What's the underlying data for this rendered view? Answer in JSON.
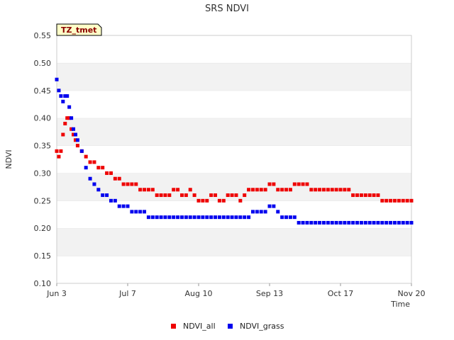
{
  "chart_data": {
    "type": "scatter",
    "title": "SRS NDVI",
    "xlabel": "Time",
    "ylabel": "NDVI",
    "ylim": [
      0.1,
      0.55
    ],
    "xlim_days": [
      0,
      170
    ],
    "yticks": [
      "0.10",
      "0.15",
      "0.20",
      "0.25",
      "0.30",
      "0.35",
      "0.40",
      "0.45",
      "0.50",
      "0.55"
    ],
    "xticks": [
      {
        "label": "Jun 3",
        "day": 0
      },
      {
        "label": "Jul 7",
        "day": 34
      },
      {
        "label": "Aug 10",
        "day": 68
      },
      {
        "label": "Sep 13",
        "day": 102
      },
      {
        "label": "Oct 17",
        "day": 136
      },
      {
        "label": "Nov 20",
        "day": 170
      }
    ],
    "grid": "alternating horizontal bands",
    "badge": "TZ_tmet",
    "legend_position": "bottom-center",
    "series": [
      {
        "name": "NDVI_all",
        "color": "#ee0000",
        "points": [
          [
            0,
            0.34
          ],
          [
            1,
            0.33
          ],
          [
            2,
            0.34
          ],
          [
            3,
            0.37
          ],
          [
            4,
            0.39
          ],
          [
            5,
            0.4
          ],
          [
            6,
            0.4
          ],
          [
            7,
            0.38
          ],
          [
            8,
            0.37
          ],
          [
            9,
            0.36
          ],
          [
            10,
            0.35
          ],
          [
            12,
            0.34
          ],
          [
            14,
            0.33
          ],
          [
            16,
            0.32
          ],
          [
            18,
            0.32
          ],
          [
            20,
            0.31
          ],
          [
            22,
            0.31
          ],
          [
            24,
            0.3
          ],
          [
            26,
            0.3
          ],
          [
            28,
            0.29
          ],
          [
            30,
            0.29
          ],
          [
            32,
            0.28
          ],
          [
            34,
            0.28
          ],
          [
            36,
            0.28
          ],
          [
            38,
            0.28
          ],
          [
            40,
            0.27
          ],
          [
            42,
            0.27
          ],
          [
            44,
            0.27
          ],
          [
            46,
            0.27
          ],
          [
            48,
            0.26
          ],
          [
            50,
            0.26
          ],
          [
            52,
            0.26
          ],
          [
            54,
            0.26
          ],
          [
            56,
            0.27
          ],
          [
            58,
            0.27
          ],
          [
            60,
            0.26
          ],
          [
            62,
            0.26
          ],
          [
            64,
            0.27
          ],
          [
            66,
            0.26
          ],
          [
            68,
            0.25
          ],
          [
            70,
            0.25
          ],
          [
            72,
            0.25
          ],
          [
            74,
            0.26
          ],
          [
            76,
            0.26
          ],
          [
            78,
            0.25
          ],
          [
            80,
            0.25
          ],
          [
            82,
            0.26
          ],
          [
            84,
            0.26
          ],
          [
            86,
            0.26
          ],
          [
            88,
            0.25
          ],
          [
            90,
            0.26
          ],
          [
            92,
            0.27
          ],
          [
            94,
            0.27
          ],
          [
            96,
            0.27
          ],
          [
            98,
            0.27
          ],
          [
            100,
            0.27
          ],
          [
            102,
            0.28
          ],
          [
            104,
            0.28
          ],
          [
            106,
            0.27
          ],
          [
            108,
            0.27
          ],
          [
            110,
            0.27
          ],
          [
            112,
            0.27
          ],
          [
            114,
            0.28
          ],
          [
            116,
            0.28
          ],
          [
            118,
            0.28
          ],
          [
            120,
            0.28
          ],
          [
            122,
            0.27
          ],
          [
            124,
            0.27
          ],
          [
            126,
            0.27
          ],
          [
            128,
            0.27
          ],
          [
            130,
            0.27
          ],
          [
            132,
            0.27
          ],
          [
            134,
            0.27
          ],
          [
            136,
            0.27
          ],
          [
            138,
            0.27
          ],
          [
            140,
            0.27
          ],
          [
            142,
            0.26
          ],
          [
            144,
            0.26
          ],
          [
            146,
            0.26
          ],
          [
            148,
            0.26
          ],
          [
            150,
            0.26
          ],
          [
            152,
            0.26
          ],
          [
            154,
            0.26
          ],
          [
            156,
            0.25
          ],
          [
            158,
            0.25
          ],
          [
            160,
            0.25
          ],
          [
            162,
            0.25
          ],
          [
            164,
            0.25
          ],
          [
            166,
            0.25
          ],
          [
            168,
            0.25
          ],
          [
            170,
            0.25
          ]
        ]
      },
      {
        "name": "NDVI_grass",
        "color": "#0000ee",
        "points": [
          [
            0,
            0.47
          ],
          [
            1,
            0.45
          ],
          [
            2,
            0.44
          ],
          [
            3,
            0.43
          ],
          [
            4,
            0.44
          ],
          [
            5,
            0.44
          ],
          [
            6,
            0.42
          ],
          [
            7,
            0.4
          ],
          [
            8,
            0.38
          ],
          [
            9,
            0.37
          ],
          [
            10,
            0.36
          ],
          [
            12,
            0.34
          ],
          [
            14,
            0.31
          ],
          [
            16,
            0.29
          ],
          [
            18,
            0.28
          ],
          [
            20,
            0.27
          ],
          [
            22,
            0.26
          ],
          [
            24,
            0.26
          ],
          [
            26,
            0.25
          ],
          [
            28,
            0.25
          ],
          [
            30,
            0.24
          ],
          [
            32,
            0.24
          ],
          [
            34,
            0.24
          ],
          [
            36,
            0.23
          ],
          [
            38,
            0.23
          ],
          [
            40,
            0.23
          ],
          [
            42,
            0.23
          ],
          [
            44,
            0.22
          ],
          [
            46,
            0.22
          ],
          [
            48,
            0.22
          ],
          [
            50,
            0.22
          ],
          [
            52,
            0.22
          ],
          [
            54,
            0.22
          ],
          [
            56,
            0.22
          ],
          [
            58,
            0.22
          ],
          [
            60,
            0.22
          ],
          [
            62,
            0.22
          ],
          [
            64,
            0.22
          ],
          [
            66,
            0.22
          ],
          [
            68,
            0.22
          ],
          [
            70,
            0.22
          ],
          [
            72,
            0.22
          ],
          [
            74,
            0.22
          ],
          [
            76,
            0.22
          ],
          [
            78,
            0.22
          ],
          [
            80,
            0.22
          ],
          [
            82,
            0.22
          ],
          [
            84,
            0.22
          ],
          [
            86,
            0.22
          ],
          [
            88,
            0.22
          ],
          [
            90,
            0.22
          ],
          [
            92,
            0.22
          ],
          [
            94,
            0.23
          ],
          [
            96,
            0.23
          ],
          [
            98,
            0.23
          ],
          [
            100,
            0.23
          ],
          [
            102,
            0.24
          ],
          [
            104,
            0.24
          ],
          [
            106,
            0.23
          ],
          [
            108,
            0.22
          ],
          [
            110,
            0.22
          ],
          [
            112,
            0.22
          ],
          [
            114,
            0.22
          ],
          [
            116,
            0.21
          ],
          [
            118,
            0.21
          ],
          [
            120,
            0.21
          ],
          [
            122,
            0.21
          ],
          [
            124,
            0.21
          ],
          [
            126,
            0.21
          ],
          [
            128,
            0.21
          ],
          [
            130,
            0.21
          ],
          [
            132,
            0.21
          ],
          [
            134,
            0.21
          ],
          [
            136,
            0.21
          ],
          [
            138,
            0.21
          ],
          [
            140,
            0.21
          ],
          [
            142,
            0.21
          ],
          [
            144,
            0.21
          ],
          [
            146,
            0.21
          ],
          [
            148,
            0.21
          ],
          [
            150,
            0.21
          ],
          [
            152,
            0.21
          ],
          [
            154,
            0.21
          ],
          [
            156,
            0.21
          ],
          [
            158,
            0.21
          ],
          [
            160,
            0.21
          ],
          [
            162,
            0.21
          ],
          [
            164,
            0.21
          ],
          [
            166,
            0.21
          ],
          [
            168,
            0.21
          ],
          [
            170,
            0.21
          ]
        ]
      }
    ]
  }
}
